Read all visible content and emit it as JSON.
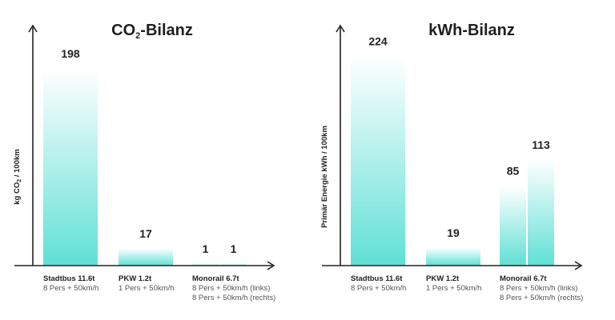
{
  "chart_data": [
    {
      "type": "bar",
      "title_main": "CO",
      "title_sub": "2",
      "title_rest": "-Bilanz",
      "ylabel_main": "kg CO",
      "ylabel_sub": "2",
      "ylabel_rest": " / 100km",
      "xlabel": "",
      "ylim": [
        0,
        235
      ],
      "groups": [
        {
          "name": "Stadtbus 11.6t",
          "detail": [
            "8 Pers + 50km/h"
          ],
          "values": [
            198
          ],
          "labels": [
            "198"
          ]
        },
        {
          "name": "PKW 1.2t",
          "detail": [
            "1 Pers + 50km/h"
          ],
          "values": [
            17
          ],
          "labels": [
            "17"
          ]
        },
        {
          "name": "Monorail 6.7t",
          "detail": [
            "8 Pers + 50km/h (links)",
            "8 Pers + 50km/h (rechts)"
          ],
          "values": [
            1,
            1
          ],
          "labels": [
            "1",
            "1"
          ]
        }
      ]
    },
    {
      "type": "bar",
      "title_main": "kWh-Bilanz",
      "title_sub": "",
      "title_rest": "",
      "ylabel_main": "Primär Energie kWh / 100km",
      "ylabel_sub": "",
      "ylabel_rest": "",
      "xlabel": "",
      "ylim": [
        0,
        250
      ],
      "groups": [
        {
          "name": "Stadtbus 11.6t",
          "detail": [
            "8 Pers + 50km/h"
          ],
          "values": [
            224
          ],
          "labels": [
            "224"
          ]
        },
        {
          "name": "PKW 1.2t",
          "detail": [
            "1 Pers + 50km/h"
          ],
          "values": [
            19
          ],
          "labels": [
            "19"
          ]
        },
        {
          "name": "Monorail 6.7t",
          "detail": [
            "8 Pers + 50km/h (links)",
            "8 Pers + 50km/h (rechts)"
          ],
          "values": [
            85,
            113
          ],
          "labels": [
            "85",
            "113"
          ]
        }
      ]
    }
  ],
  "colors": {
    "bar_top": "#ffffff",
    "bar_bottom": "#5fe0d6",
    "axis": "#222222"
  }
}
